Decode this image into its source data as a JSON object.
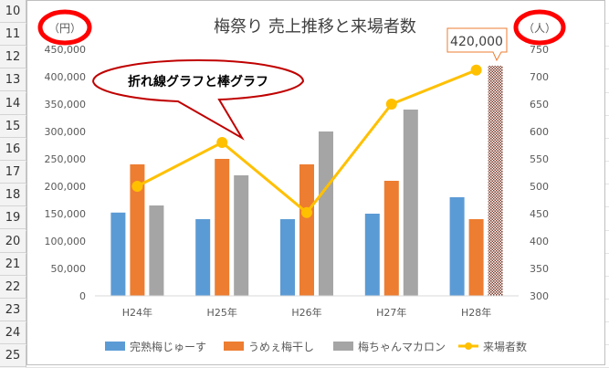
{
  "spreadsheet": {
    "row_numbers": [
      "10",
      "11",
      "12",
      "13",
      "14",
      "15",
      "16",
      "17",
      "18",
      "19",
      "20",
      "21",
      "22",
      "23",
      "24",
      "25"
    ]
  },
  "chart_data": {
    "type": "bar",
    "title": "梅祭り 売上推移と来場者数",
    "categories": [
      "H24年",
      "H25年",
      "H26年",
      "H27年",
      "H28年"
    ],
    "series": [
      {
        "name": "完熟梅じゅーす",
        "type": "bar",
        "axis": "left",
        "color": "#5b9bd5",
        "values": [
          152000,
          140000,
          140000,
          150000,
          180000
        ]
      },
      {
        "name": "うめぇ梅干し",
        "type": "bar",
        "axis": "left",
        "color": "#ed7d31",
        "values": [
          240000,
          250000,
          240000,
          210000,
          140000
        ]
      },
      {
        "name": "梅ちゃんマカロン",
        "type": "bar",
        "axis": "left",
        "color": "#a5a5a5",
        "values": [
          165000,
          220000,
          300000,
          340000,
          420000
        ]
      },
      {
        "name": "来場者数",
        "type": "line",
        "axis": "right",
        "color": "#ffc000",
        "values": [
          500,
          580,
          452,
          650,
          712
        ]
      }
    ],
    "y_left": {
      "unit_label": "（円）",
      "ylim": [
        0,
        450000
      ],
      "ticks": [
        0,
        50000,
        100000,
        150000,
        200000,
        250000,
        300000,
        350000,
        400000,
        450000
      ],
      "tick_labels": [
        "0",
        "50,000",
        "100,000",
        "150,000",
        "200,000",
        "250,000",
        "300,000",
        "350,000",
        "400,000",
        "450,000"
      ]
    },
    "y_right": {
      "unit_label": "（人）",
      "ylim": [
        300,
        750
      ],
      "ticks": [
        300,
        350,
        400,
        450,
        500,
        550,
        600,
        650,
        700,
        750
      ],
      "tick_labels": [
        "300",
        "350",
        "400",
        "450",
        "500",
        "550",
        "600",
        "650",
        "700",
        "750"
      ]
    },
    "callouts": {
      "speech_bubble": "折れ線グラフと棒グラフ",
      "value_label": "420,000"
    },
    "highlight": {
      "series": "梅ちゃんマカロン",
      "category": "H28年",
      "style": "hatched"
    },
    "legend_position": "bottom",
    "grid": false,
    "colors": {
      "circle_highlight": "#ff0000"
    }
  }
}
